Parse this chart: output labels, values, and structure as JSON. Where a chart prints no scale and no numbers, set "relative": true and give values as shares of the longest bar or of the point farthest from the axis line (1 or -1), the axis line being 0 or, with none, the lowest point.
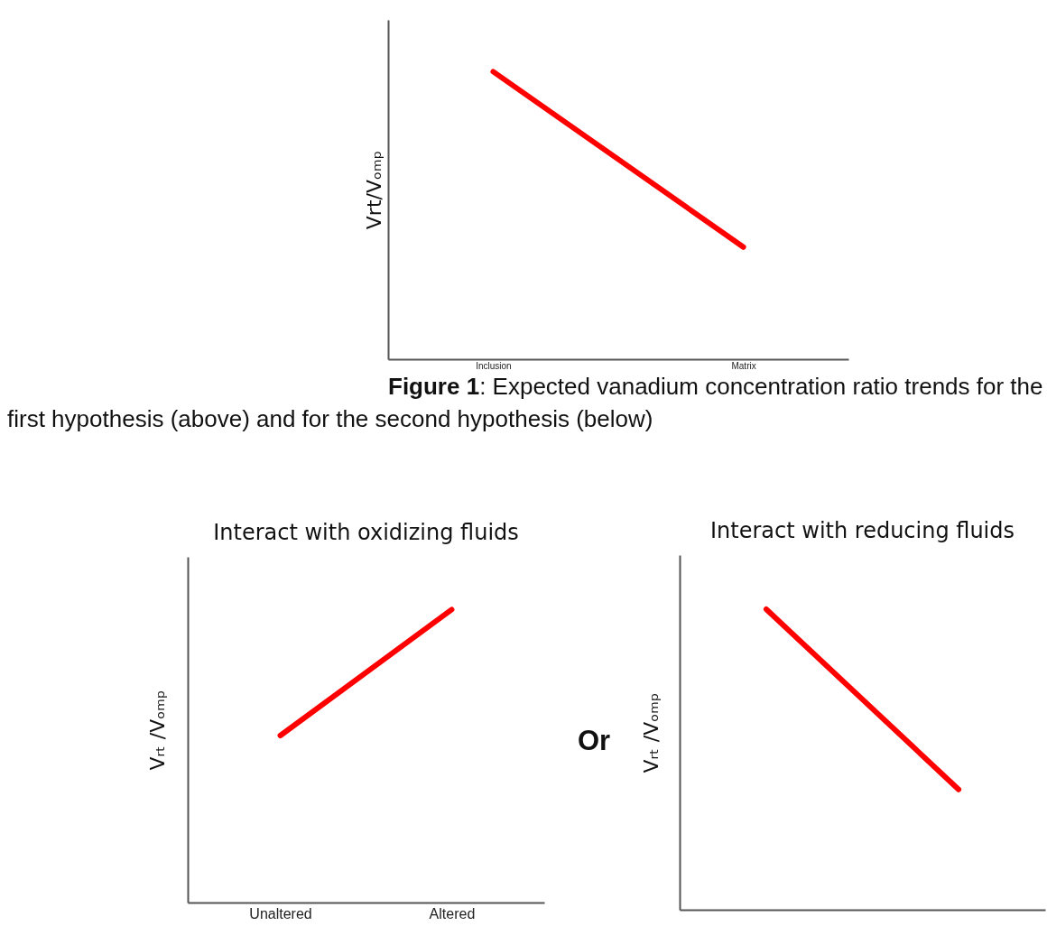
{
  "chart_data": [
    {
      "type": "line",
      "ylabel": "Vrt/Vₒₘₚ",
      "categories": [
        "Inclusion",
        "Matrix"
      ],
      "relative": true,
      "series": [
        {
          "color": "#ff0000",
          "values": [
            1,
            0.39
          ]
        }
      ],
      "annotations": [
        "Figure 1: Expected vanadium concentration ratio trends for the first hypothesis (above) and for the second hypothesis (below)"
      ]
    },
    {
      "type": "line",
      "title": "Interact with oxidizing fluids",
      "ylabel": "Vᵣₜ /Vₒₘₚ",
      "categories": [
        "Unaltered",
        "Altered"
      ],
      "relative": true,
      "series": [
        {
          "color": "#ff0000",
          "values": [
            0.57,
            1
          ]
        }
      ]
    },
    {
      "type": "line",
      "title": "Interact with reducing fluids",
      "ylabel": "Vᵣₜ /Vₒₘₚ",
      "categories": [
        null,
        null
      ],
      "relative": true,
      "series": [
        {
          "color": "#ff0000",
          "values": [
            1,
            0.4
          ]
        }
      ],
      "annotations": [
        "Or"
      ]
    }
  ]
}
